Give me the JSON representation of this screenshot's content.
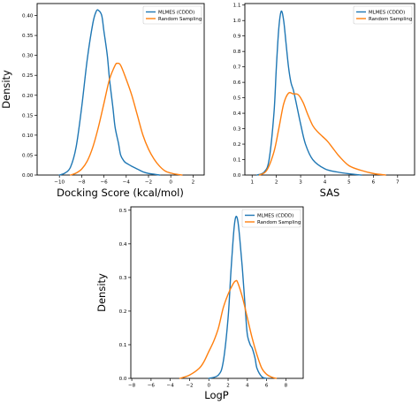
{
  "colors": {
    "blue": "#1f77b4",
    "orange": "#ff7f0e"
  },
  "chart_data": [
    {
      "type": "line",
      "xlabel": "Docking Score (kcal/mol)",
      "ylabel": "Density",
      "xlim": [
        -12,
        3
      ],
      "ylim": [
        0,
        0.43
      ],
      "xticks": [
        -10,
        -8,
        -6,
        -4,
        -2,
        0,
        2
      ],
      "yticks": [
        0.0,
        0.05,
        0.1,
        0.15,
        0.2,
        0.25,
        0.3,
        0.35,
        0.4
      ],
      "ytick_labels": [
        "0.00",
        "0.05",
        "0.10",
        "0.15",
        "0.20",
        "0.25",
        "0.30",
        "0.35",
        "0.40"
      ],
      "grid": false,
      "legend": "top-right",
      "series": [
        {
          "name": "MLMES (CDDD)",
          "color": "#1f77b4",
          "x": [
            -10.0,
            -9.5,
            -9.0,
            -8.5,
            -8.0,
            -7.5,
            -7.0,
            -6.7,
            -6.5,
            -6.2,
            -6.0,
            -5.7,
            -5.5,
            -5.2,
            -5.0,
            -4.7,
            -4.5,
            -4.2,
            -4.0,
            -3.5,
            -3.0,
            -2.5,
            -2.0,
            -1.5,
            -1.0
          ],
          "y": [
            0.0,
            0.005,
            0.02,
            0.07,
            0.17,
            0.29,
            0.38,
            0.41,
            0.413,
            0.4,
            0.36,
            0.3,
            0.24,
            0.17,
            0.12,
            0.08,
            0.05,
            0.035,
            0.03,
            0.022,
            0.015,
            0.008,
            0.004,
            0.002,
            0.0
          ]
        },
        {
          "name": "Random Sampling",
          "color": "#ff7f0e",
          "x": [
            -9.0,
            -8.5,
            -8.0,
            -7.5,
            -7.0,
            -6.5,
            -6.0,
            -5.5,
            -5.0,
            -4.8,
            -4.5,
            -4.0,
            -3.5,
            -3.0,
            -2.5,
            -2.0,
            -1.5,
            -1.0,
            -0.5,
            0.0,
            0.5,
            1.0
          ],
          "y": [
            0.0,
            0.005,
            0.015,
            0.035,
            0.07,
            0.12,
            0.18,
            0.24,
            0.275,
            0.28,
            0.275,
            0.24,
            0.2,
            0.15,
            0.1,
            0.065,
            0.04,
            0.022,
            0.01,
            0.005,
            0.002,
            0.0
          ]
        }
      ]
    },
    {
      "type": "line",
      "xlabel": "SAS",
      "ylabel": "",
      "xlim": [
        0.7,
        7.7
      ],
      "ylim": [
        0,
        1.11
      ],
      "xticks": [
        1,
        2,
        3,
        4,
        5,
        6,
        7
      ],
      "yticks": [
        0.0,
        0.1,
        0.2,
        0.3,
        0.4,
        0.5,
        0.6,
        0.7,
        0.8,
        0.9,
        1.0,
        1.1
      ],
      "ytick_labels": [
        "0.0",
        "0.1",
        "0.2",
        "0.3",
        "0.4",
        "0.5",
        "0.6",
        "0.7",
        "0.8",
        "0.9",
        "1.0",
        "1.1"
      ],
      "grid": false,
      "legend": "top-right",
      "series": [
        {
          "name": "MLMES (CDDD)",
          "color": "#1f77b4",
          "x": [
            1.2,
            1.5,
            1.7,
            1.9,
            2.0,
            2.1,
            2.2,
            2.3,
            2.4,
            2.5,
            2.6,
            2.7,
            2.8,
            3.0,
            3.2,
            3.5,
            4.0,
            4.5,
            5.0,
            5.5
          ],
          "y": [
            0.0,
            0.02,
            0.1,
            0.4,
            0.7,
            0.95,
            1.06,
            1.0,
            0.85,
            0.7,
            0.6,
            0.55,
            0.48,
            0.33,
            0.2,
            0.1,
            0.04,
            0.02,
            0.008,
            0.0
          ]
        },
        {
          "name": "Random Sampling",
          "color": "#ff7f0e",
          "x": [
            1.3,
            1.6,
            1.9,
            2.1,
            2.3,
            2.5,
            2.7,
            2.9,
            3.1,
            3.3,
            3.5,
            3.7,
            3.9,
            4.1,
            4.3,
            4.6,
            5.0,
            5.5,
            6.0,
            6.5
          ],
          "y": [
            0.0,
            0.03,
            0.15,
            0.3,
            0.46,
            0.53,
            0.525,
            0.52,
            0.47,
            0.39,
            0.32,
            0.28,
            0.25,
            0.22,
            0.18,
            0.12,
            0.06,
            0.03,
            0.01,
            0.0
          ]
        }
      ]
    },
    {
      "type": "line",
      "xlabel": "LogP",
      "ylabel": "Density",
      "xlim": [
        -8.1,
        9.8
      ],
      "ylim": [
        0,
        0.51
      ],
      "xticks": [
        -8,
        -6,
        -4,
        -2,
        0,
        2,
        4,
        6,
        8
      ],
      "yticks": [
        0.0,
        0.1,
        0.2,
        0.3,
        0.4,
        0.5
      ],
      "ytick_labels": [
        "0.0",
        "0.1",
        "0.2",
        "0.3",
        "0.4",
        "0.5"
      ],
      "grid": false,
      "legend": "top-right",
      "series": [
        {
          "name": "MLMES (CDDD)",
          "color": "#1f77b4",
          "x": [
            0.0,
            1.0,
            1.5,
            2.0,
            2.3,
            2.6,
            2.8,
            3.0,
            3.2,
            3.5,
            3.8,
            4.0,
            4.3,
            4.5,
            4.8,
            5.0,
            5.5,
            6.0
          ],
          "y": [
            0.0,
            0.01,
            0.05,
            0.18,
            0.32,
            0.44,
            0.48,
            0.47,
            0.42,
            0.32,
            0.2,
            0.13,
            0.1,
            0.09,
            0.06,
            0.03,
            0.005,
            0.0
          ]
        },
        {
          "name": "Random Sampling",
          "color": "#ff7f0e",
          "x": [
            -3.0,
            -2.0,
            -1.0,
            -0.5,
            0.0,
            0.5,
            1.0,
            1.5,
            2.0,
            2.5,
            2.8,
            3.0,
            3.5,
            4.0,
            4.5,
            5.0,
            5.5,
            6.0,
            6.5,
            7.0
          ],
          "y": [
            0.0,
            0.01,
            0.03,
            0.05,
            0.08,
            0.11,
            0.15,
            0.21,
            0.25,
            0.28,
            0.29,
            0.285,
            0.24,
            0.18,
            0.12,
            0.07,
            0.03,
            0.012,
            0.004,
            0.0
          ]
        }
      ]
    }
  ]
}
